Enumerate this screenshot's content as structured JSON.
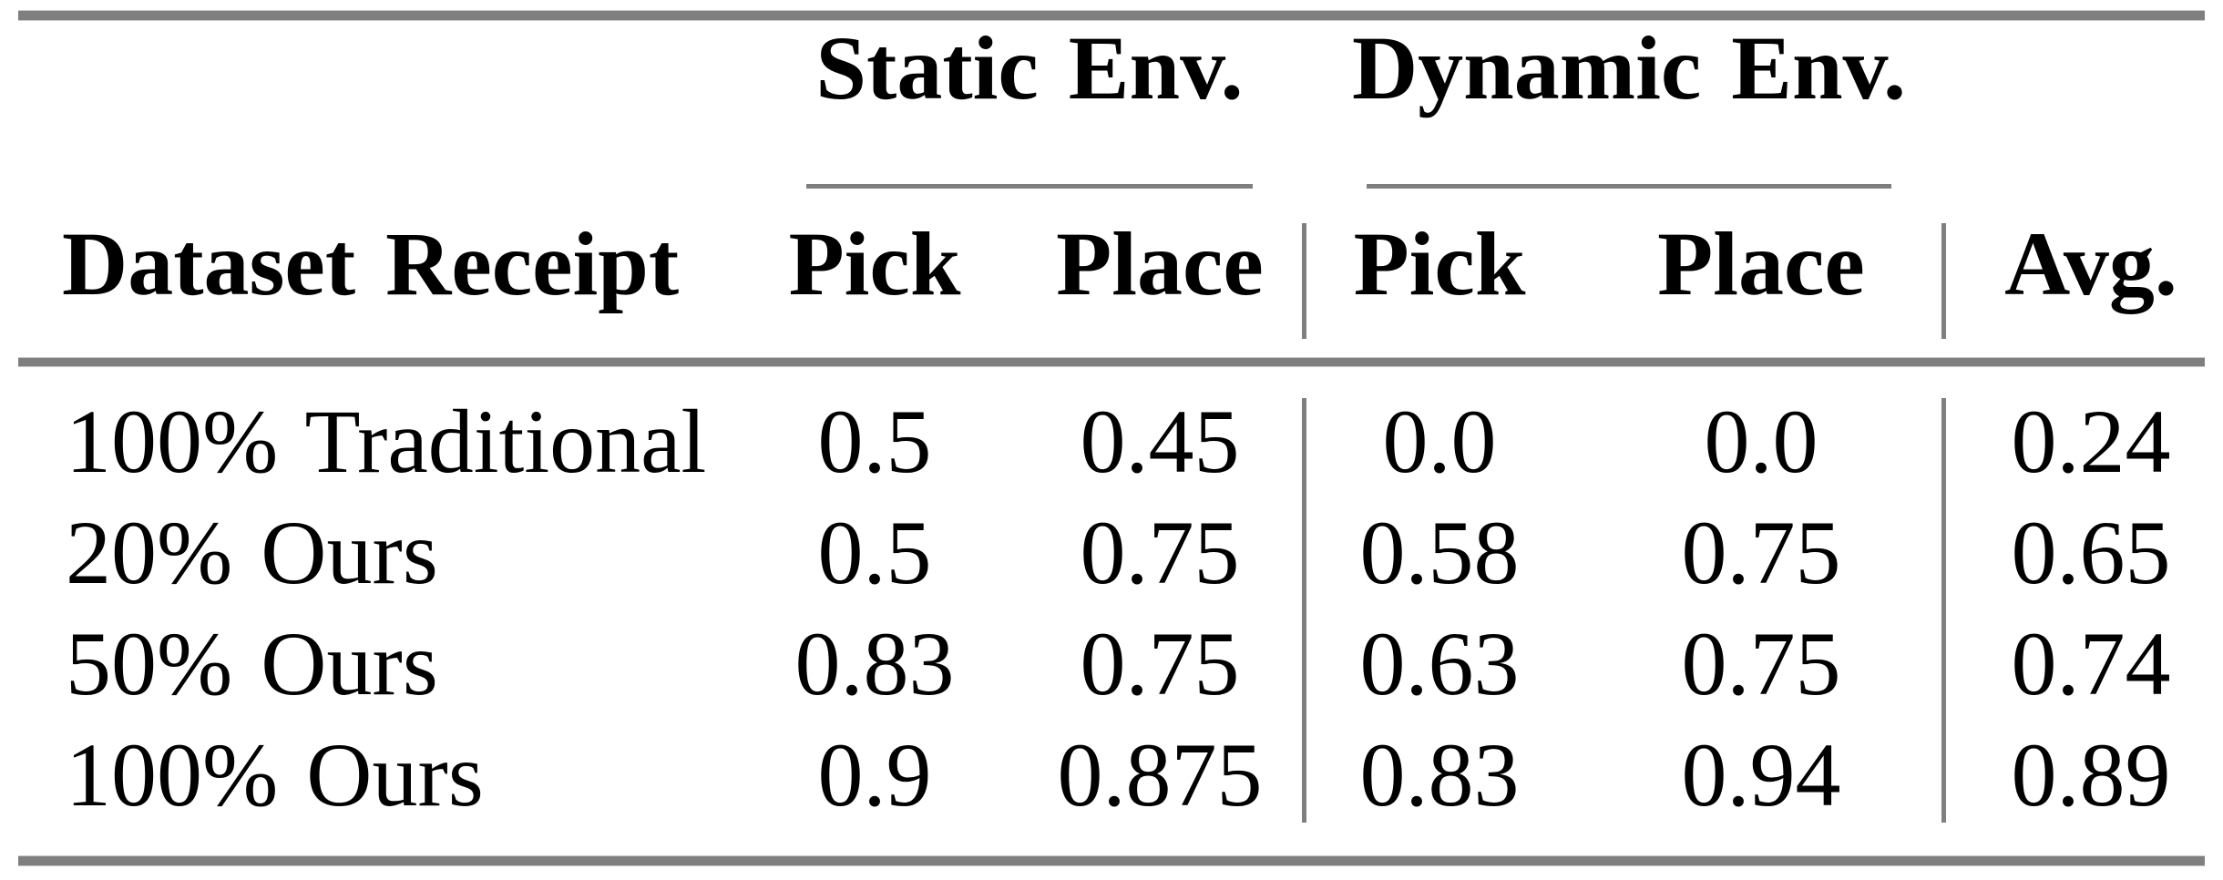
{
  "table": {
    "column_groups": [
      {
        "label": "Static Env.",
        "sub_columns": [
          "Pick",
          "Place"
        ]
      },
      {
        "label": "Dynamic Env.",
        "sub_columns": [
          "Pick",
          "Place"
        ]
      }
    ],
    "headers": {
      "row_header": "Dataset Receipt",
      "static_pick": "Pick",
      "static_place": "Place",
      "dynamic_pick": "Pick",
      "dynamic_place": "Place",
      "avg": "Avg."
    },
    "rows": [
      {
        "label": "100% Traditional",
        "values": [
          "0.5",
          "0.45",
          "0.0",
          "0.0",
          "0.24"
        ]
      },
      {
        "label": "20% Ours",
        "values": [
          "0.5",
          "0.75",
          "0.58",
          "0.75",
          "0.65"
        ]
      },
      {
        "label": "50% Ours",
        "values": [
          "0.83",
          "0.75",
          "0.63",
          "0.75",
          "0.74"
        ]
      },
      {
        "label": "100% Ours",
        "values": [
          "0.9",
          "0.875",
          "0.83",
          "0.94",
          "0.89"
        ]
      }
    ],
    "colors": {
      "rule": "#7f7f7f",
      "text": "#000000",
      "background": "#ffffff"
    }
  },
  "chart_data": {
    "type": "table",
    "columns": [
      "Dataset Receipt",
      "Static Env. Pick",
      "Static Env. Place",
      "Dynamic Env. Pick",
      "Dynamic Env. Place",
      "Avg."
    ],
    "rows": [
      [
        "100% Traditional",
        0.5,
        0.45,
        0.0,
        0.0,
        0.24
      ],
      [
        "20% Ours",
        0.5,
        0.75,
        0.58,
        0.75,
        0.65
      ],
      [
        "50% Ours",
        0.83,
        0.75,
        0.63,
        0.75,
        0.74
      ],
      [
        "100% Ours",
        0.9,
        0.875,
        0.83,
        0.94,
        0.89
      ]
    ]
  }
}
